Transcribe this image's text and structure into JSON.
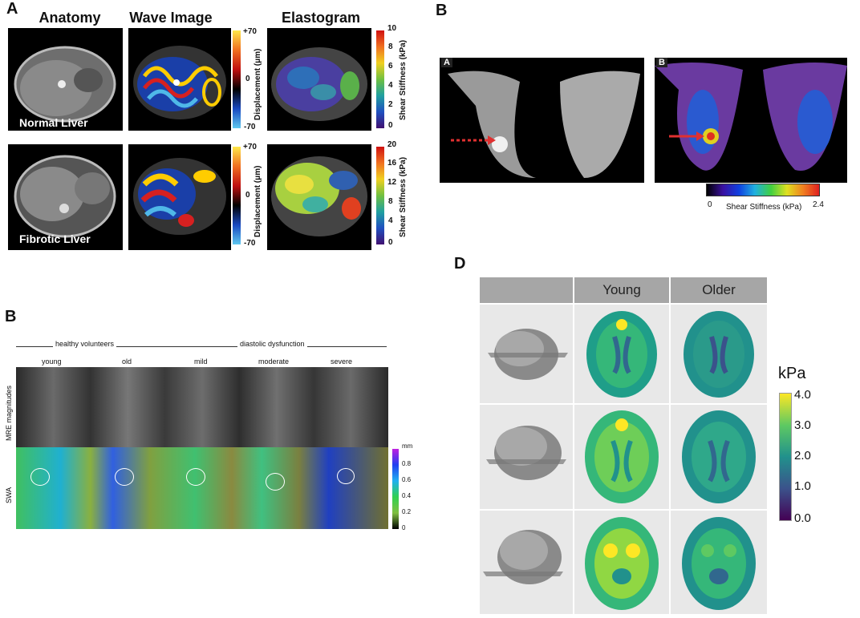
{
  "panelA": {
    "letter": "A",
    "headers": [
      "Anatomy",
      "Wave Image",
      "Elastogram"
    ],
    "row_labels": [
      "Normal Liver",
      "Fibrotic Liver"
    ],
    "displacement_label": "Displacement (μm)",
    "displacement_ticks": [
      "+70",
      "0",
      "-70"
    ],
    "stiffness_label": "Shear Stiffness (kPa)",
    "stiffness_ticks_top": [
      "10",
      "8",
      "6",
      "4",
      "2",
      "0"
    ],
    "stiffness_ticks_bottom": [
      "20",
      "16",
      "12",
      "8",
      "4",
      "0"
    ]
  },
  "panelB_breast": {
    "letter": "B",
    "sub_labels": [
      "A",
      "B"
    ],
    "colorbar_label": "Shear Stiffness (kPa)",
    "colorbar_min": "0",
    "colorbar_max": "2.4"
  },
  "panelB_heart": {
    "letter": "B",
    "group_labels": [
      "healthy volunteers",
      "diastolic dysfunction"
    ],
    "column_labels": [
      "young",
      "old",
      "mild",
      "moderate",
      "severe"
    ],
    "row_labels": [
      "MRE magnitudes",
      "SWA"
    ],
    "colorbar_unit": "mm",
    "colorbar_ticks": [
      "0.8",
      "0.6",
      "0.4",
      "0.2",
      "0"
    ]
  },
  "panelD": {
    "letter": "D",
    "column_headers": [
      "Young",
      "Older"
    ],
    "unit": "kPa",
    "colorbar_ticks": [
      "4.0",
      "3.0",
      "2.0",
      "1.0",
      "0.0"
    ]
  },
  "colors": {
    "viridis": [
      "#440154",
      "#3b528b",
      "#21918c",
      "#5ec962",
      "#fde725"
    ],
    "table_bg": "#e8e8e8",
    "table_header": "#a6a6a6"
  }
}
